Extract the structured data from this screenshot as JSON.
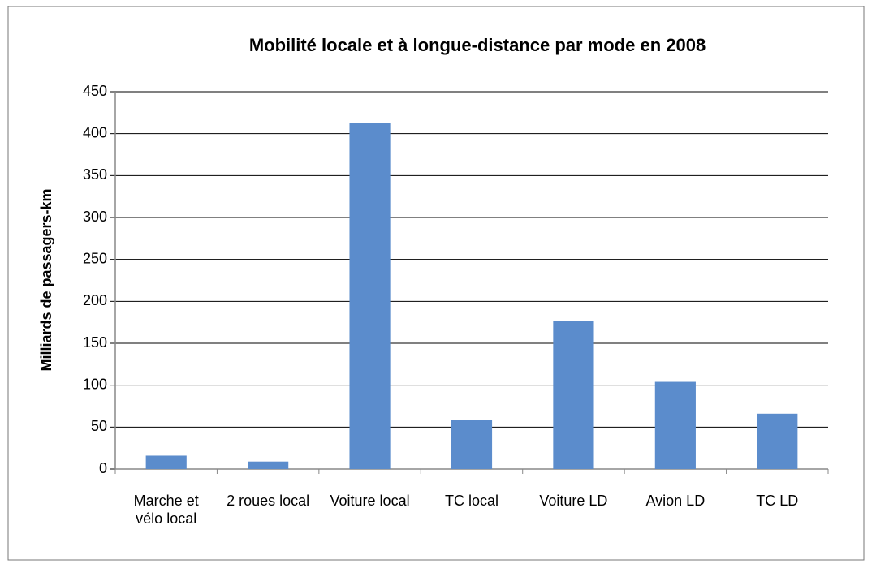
{
  "chart_data": {
    "type": "bar",
    "title": "Mobilité locale et à longue-distance par mode en 2008",
    "y_label": "Milliards de passagers-km",
    "categories": [
      "Marche et vélo local",
      "2 roues local",
      "Voiture local",
      "TC local",
      "Voiture LD",
      "Avion LD",
      "TC LD"
    ],
    "values": [
      16,
      9,
      413,
      59,
      177,
      104,
      66
    ],
    "color": "#5b8ccc",
    "ylim": [
      0,
      450
    ],
    "yticks": [
      0,
      50,
      100,
      150,
      200,
      250,
      300,
      350,
      400,
      450
    ],
    "grid": true
  }
}
